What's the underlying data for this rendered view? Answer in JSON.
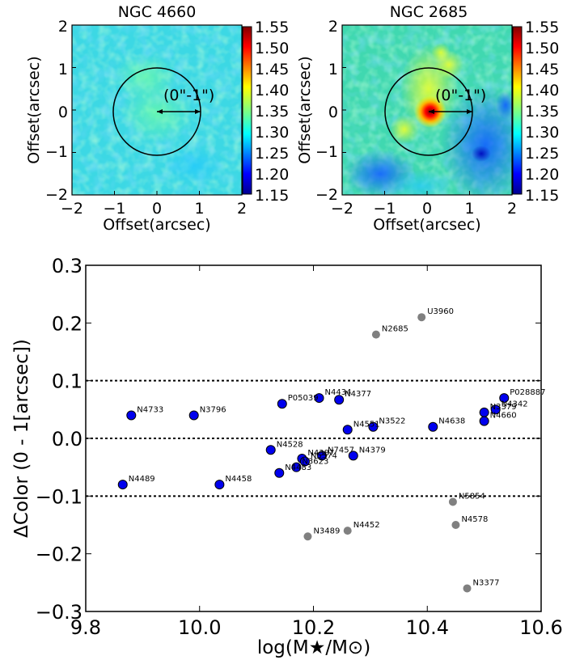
{
  "panels": [
    {
      "title": "NGC 4660",
      "xlabel": "Offset(arcsec)",
      "ylabel": "Offset(arcsec)",
      "annotation": "(0\"-1\")",
      "ticks": [
        "−2",
        "−1",
        "0",
        "1",
        "2"
      ],
      "colorbar_ticks": [
        "1.55",
        "1.50",
        "1.45",
        "1.40",
        "1.35",
        "1.30",
        "1.25",
        "1.20",
        "1.15"
      ]
    },
    {
      "title": "NGC 2685",
      "xlabel": "Offset(arcsec)",
      "ylabel": "Offset(arcsec)",
      "annotation": "(0\"-1\")",
      "ticks": [
        "−2",
        "−1",
        "0",
        "1",
        "2"
      ],
      "colorbar_ticks": [
        "1.55",
        "1.50",
        "1.45",
        "1.40",
        "1.35",
        "1.30",
        "1.25",
        "1.20",
        "1.15"
      ]
    }
  ],
  "chart_data": {
    "type": "scatter",
    "xlabel": "log(M★/M⊙)",
    "ylabel": "ΔColor (0 - 1[arcsec])",
    "xlim": [
      9.8,
      10.6
    ],
    "ylim": [
      -0.3,
      0.3
    ],
    "xticks": [
      9.8,
      10.0,
      10.2,
      10.4,
      10.6
    ],
    "xtick_labels": [
      "9.8",
      "10.0",
      "10.2",
      "10.4",
      "10.6"
    ],
    "yticks": [
      0.3,
      0.2,
      0.1,
      0.0,
      -0.1,
      -0.2,
      -0.3
    ],
    "ytick_labels": [
      "0.3",
      "0.2",
      "0.1",
      "0.0",
      "−0.1",
      "−0.2",
      "−0.3"
    ],
    "reference_lines": [
      0.1,
      0.0,
      -0.1
    ],
    "grid": false,
    "colors": {
      "blue": "#0000ee",
      "gray": "#808080"
    },
    "points": [
      {
        "label": "U3960",
        "x": 10.39,
        "y": 0.21,
        "group": "gray"
      },
      {
        "label": "N2685",
        "x": 10.31,
        "y": 0.18,
        "group": "gray"
      },
      {
        "label": "N4733",
        "x": 9.88,
        "y": 0.04,
        "group": "blue"
      },
      {
        "label": "N3796",
        "x": 9.99,
        "y": 0.04,
        "group": "blue"
      },
      {
        "label": "P05039",
        "x": 10.145,
        "y": 0.06,
        "group": "blue"
      },
      {
        "label": "N4434",
        "x": 10.21,
        "y": 0.07,
        "group": "blue"
      },
      {
        "label": "N4377",
        "x": 10.245,
        "y": 0.067,
        "group": "blue"
      },
      {
        "label": "N4551",
        "x": 10.26,
        "y": 0.015,
        "group": "blue"
      },
      {
        "label": "N3522",
        "x": 10.305,
        "y": 0.02,
        "group": "blue"
      },
      {
        "label": "N4638",
        "x": 10.41,
        "y": 0.02,
        "group": "blue"
      },
      {
        "label": "P028887",
        "x": 10.535,
        "y": 0.07,
        "group": "blue"
      },
      {
        "label": "N4342",
        "x": 10.52,
        "y": 0.05,
        "group": "blue"
      },
      {
        "label": "N3379",
        "x": 10.5,
        "y": 0.045,
        "group": "blue"
      },
      {
        "label": "N4660",
        "x": 10.5,
        "y": 0.03,
        "group": "blue"
      },
      {
        "label": "N4528",
        "x": 10.125,
        "y": -0.02,
        "group": "blue"
      },
      {
        "label": "N4387",
        "x": 10.18,
        "y": -0.035,
        "group": "blue"
      },
      {
        "label": "N7457",
        "x": 10.215,
        "y": -0.03,
        "group": "blue"
      },
      {
        "label": "N4379",
        "x": 10.27,
        "y": -0.03,
        "group": "blue"
      },
      {
        "label": "N5574",
        "x": 10.185,
        "y": -0.04,
        "group": "blue"
      },
      {
        "label": "N3623",
        "x": 10.17,
        "y": -0.05,
        "group": "blue"
      },
      {
        "label": "N4483",
        "x": 10.14,
        "y": -0.06,
        "group": "blue"
      },
      {
        "label": "N4489",
        "x": 9.865,
        "y": -0.08,
        "group": "blue"
      },
      {
        "label": "N4458",
        "x": 10.035,
        "y": -0.08,
        "group": "blue"
      },
      {
        "label": "N5854",
        "x": 10.445,
        "y": -0.11,
        "group": "gray"
      },
      {
        "label": "N4578",
        "x": 10.45,
        "y": -0.15,
        "group": "gray"
      },
      {
        "label": "N4452",
        "x": 10.26,
        "y": -0.16,
        "group": "gray"
      },
      {
        "label": "N3489",
        "x": 10.19,
        "y": -0.17,
        "group": "gray"
      },
      {
        "label": "N3377",
        "x": 10.47,
        "y": -0.26,
        "group": "gray"
      }
    ]
  }
}
